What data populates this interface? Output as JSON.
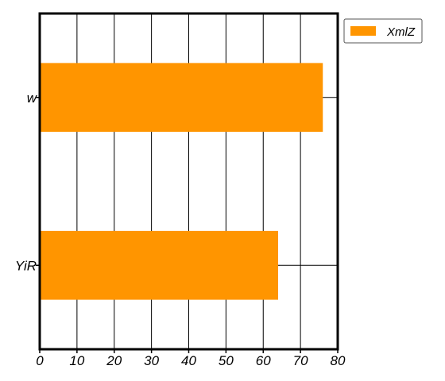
{
  "chart_data": {
    "type": "bar",
    "orientation": "horizontal",
    "title": "",
    "xlabel": "",
    "ylabel": "",
    "categories": [
      "w",
      "YiR"
    ],
    "series": [
      {
        "name": "XmlZ",
        "values": [
          76,
          64
        ],
        "color": "#ff9500"
      }
    ],
    "xlim": [
      0,
      80
    ],
    "xticks": [
      0,
      10,
      20,
      30,
      40,
      50,
      60,
      70,
      80
    ],
    "grid": true,
    "legend_position": "top-right"
  }
}
